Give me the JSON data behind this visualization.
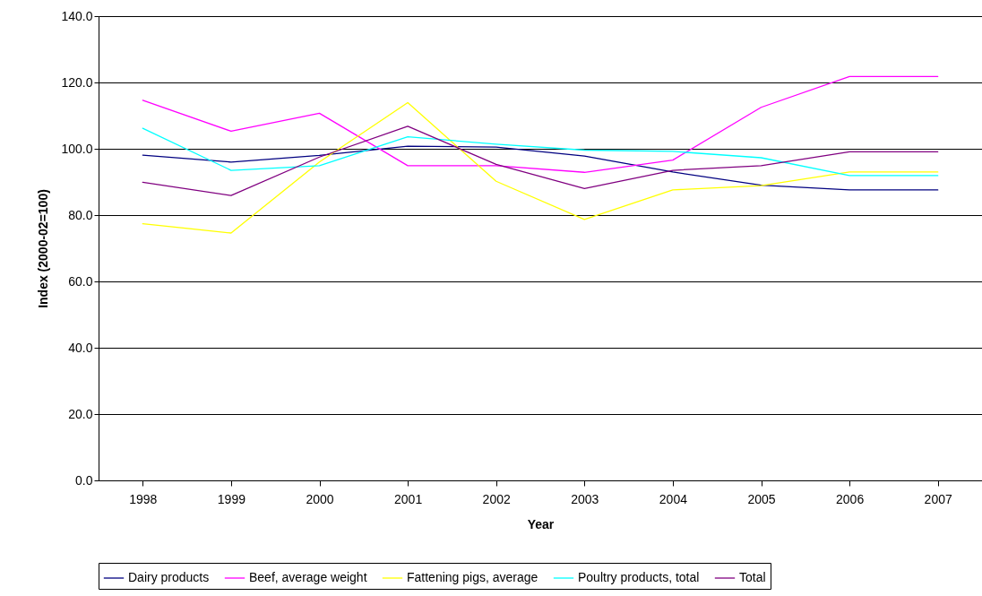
{
  "chart_data": {
    "type": "line",
    "xlabel": "Year",
    "ylabel": "Index (2000-02=100)",
    "categories": [
      "1998",
      "1999",
      "2000",
      "2001",
      "2002",
      "2003",
      "2004",
      "2005",
      "2006",
      "2007"
    ],
    "series": [
      {
        "name": "Dairy products",
        "color": "#000080",
        "values": [
          98.1,
          96.0,
          98.0,
          100.8,
          100.5,
          97.8,
          93.0,
          89.0,
          87.6,
          87.6
        ]
      },
      {
        "name": "Beef, average weight",
        "color": "#ff00ff",
        "values": [
          114.6,
          105.3,
          110.7,
          94.9,
          94.9,
          92.9,
          96.6,
          112.5,
          121.8,
          121.8
        ]
      },
      {
        "name": "Fattening pigs, average",
        "color": "#ffff00",
        "values": [
          77.4,
          74.6,
          96.0,
          113.9,
          90.2,
          78.7,
          87.6,
          88.9,
          93.0,
          93.0
        ]
      },
      {
        "name": "Poultry products, total",
        "color": "#00ffff",
        "values": [
          106.2,
          93.5,
          94.9,
          103.6,
          101.4,
          99.6,
          99.2,
          97.3,
          91.9,
          91.9
        ]
      },
      {
        "name": "Total",
        "color": "#800080",
        "values": [
          89.9,
          85.9,
          97.5,
          106.8,
          95.3,
          88.0,
          93.5,
          94.9,
          99.1,
          99.1
        ]
      }
    ],
    "ylim": [
      0,
      140
    ],
    "yticks": [
      {
        "value": 0,
        "label": "0.0"
      },
      {
        "value": 20,
        "label": "20.0"
      },
      {
        "value": 40,
        "label": "40.0"
      },
      {
        "value": 60,
        "label": "60.0"
      },
      {
        "value": 80,
        "label": "80.0"
      },
      {
        "value": 100,
        "label": "100.0"
      },
      {
        "value": 120,
        "label": "120.0"
      },
      {
        "value": 140,
        "label": "140.0"
      }
    ],
    "grid": "y",
    "legend": "bottom",
    "marker": "none",
    "line_style": "solid"
  }
}
